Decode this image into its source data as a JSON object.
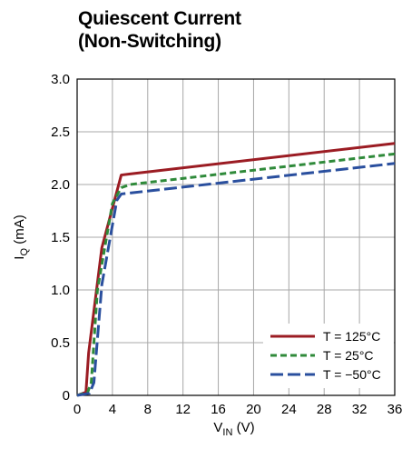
{
  "chart_data": {
    "type": "line",
    "title_lines": [
      "Quiescent Current",
      "(Non-Switching)"
    ],
    "xlabel_main": "V",
    "xlabel_sub": "IN",
    "xlabel_unit": " (V)",
    "ylabel_main": "I",
    "ylabel_sub": "Q",
    "ylabel_unit": " (mA)",
    "xlim": [
      0,
      36
    ],
    "ylim": [
      0,
      3.0
    ],
    "xticks": [
      0,
      4,
      8,
      12,
      16,
      20,
      24,
      28,
      32,
      36
    ],
    "xtick_labels": [
      "0",
      "4",
      "8",
      "12",
      "16",
      "20",
      "24",
      "28",
      "32",
      "36"
    ],
    "yticks": [
      0,
      0.5,
      1.0,
      1.5,
      2.0,
      2.5,
      3.0
    ],
    "ytick_labels": [
      "0",
      "0.5",
      "1.0",
      "1.5",
      "2.0",
      "2.5",
      "3.0"
    ],
    "grid": true,
    "legend_position": "bottom-right",
    "series": [
      {
        "name": "T = 125°C",
        "color": "#9b1c23",
        "dash": "solid",
        "points": [
          [
            0,
            0
          ],
          [
            1,
            0.03
          ],
          [
            1.3,
            0.4
          ],
          [
            2.8,
            1.4
          ],
          [
            5,
            2.09
          ],
          [
            6,
            2.1
          ],
          [
            36,
            2.39
          ]
        ]
      },
      {
        "name": "T = 25°C",
        "color": "#2f8a3a",
        "dash": "short",
        "points": [
          [
            0,
            0
          ],
          [
            1.2,
            0.03
          ],
          [
            1.6,
            0.12
          ],
          [
            2.3,
            1.0
          ],
          [
            4,
            1.82
          ],
          [
            5,
            1.97
          ],
          [
            6,
            2.0
          ],
          [
            36,
            2.29
          ]
        ]
      },
      {
        "name": "T = −50°C",
        "color": "#2a4f9e",
        "dash": "long",
        "points": [
          [
            0,
            0
          ],
          [
            1.4,
            0.02
          ],
          [
            1.9,
            0.12
          ],
          [
            2.8,
            1.05
          ],
          [
            4.5,
            1.85
          ],
          [
            5,
            1.91
          ],
          [
            36,
            2.2
          ]
        ]
      }
    ]
  }
}
